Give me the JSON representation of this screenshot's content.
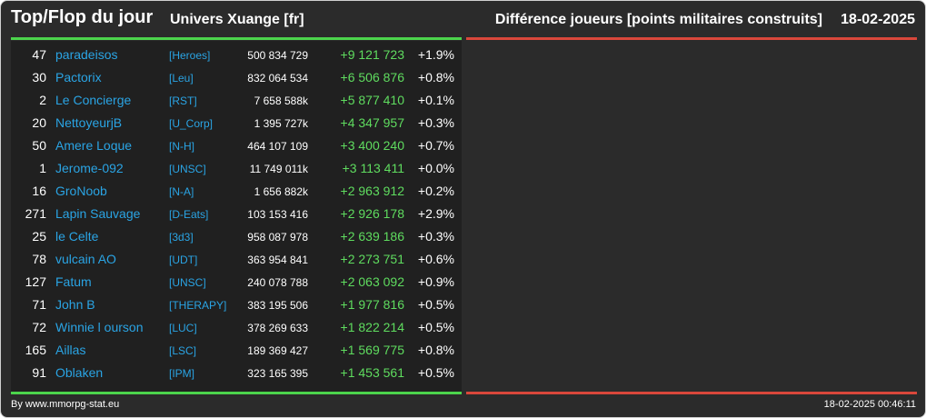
{
  "header": {
    "title": "Top/Flop du jour",
    "univers": "Univers Xuange [fr]",
    "metric": "Différence joueurs [points militaires construits]",
    "date": "18-02-2025"
  },
  "colors": {
    "background": "#2b2b2b",
    "panel": "#202020",
    "name_link": "#2aa4e4",
    "positive": "#5fdc5f",
    "top_bar": "#4cd44c",
    "flop_bar": "#d9473b"
  },
  "top_players": [
    {
      "rank": "47",
      "name": "paradeisos",
      "alliance": "[Heroes]",
      "points": "500 834 729",
      "diff": "+9 121 723",
      "pct": "+1.9%"
    },
    {
      "rank": "30",
      "name": "Pactorix",
      "alliance": "[Leu]",
      "points": "832 064 534",
      "diff": "+6 506 876",
      "pct": "+0.8%"
    },
    {
      "rank": "2",
      "name": "Le Concierge",
      "alliance": "[RST]",
      "points": "7 658 588k",
      "diff": "+5 877 410",
      "pct": "+0.1%"
    },
    {
      "rank": "20",
      "name": "NettoyeurjB",
      "alliance": "[U_Corp]",
      "points": "1 395 727k",
      "diff": "+4 347 957",
      "pct": "+0.3%"
    },
    {
      "rank": "50",
      "name": "Amere Loque",
      "alliance": "[N-H]",
      "points": "464 107 109",
      "diff": "+3 400 240",
      "pct": "+0.7%"
    },
    {
      "rank": "1",
      "name": "Jerome-092",
      "alliance": "[UNSC]",
      "points": "11 749 011k",
      "diff": "+3 113 411",
      "pct": "+0.0%"
    },
    {
      "rank": "16",
      "name": "GroNoob",
      "alliance": "[N-A]",
      "points": "1 656 882k",
      "diff": "+2 963 912",
      "pct": "+0.2%"
    },
    {
      "rank": "271",
      "name": "Lapin Sauvage",
      "alliance": "[D-Eats]",
      "points": "103 153 416",
      "diff": "+2 926 178",
      "pct": "+2.9%"
    },
    {
      "rank": "25",
      "name": "le Celte",
      "alliance": "[3d3]",
      "points": "958 087 978",
      "diff": "+2 639 186",
      "pct": "+0.3%"
    },
    {
      "rank": "78",
      "name": "vulcain AO",
      "alliance": "[UDT]",
      "points": "363 954 841",
      "diff": "+2 273 751",
      "pct": "+0.6%"
    },
    {
      "rank": "127",
      "name": "Fatum",
      "alliance": "[UNSC]",
      "points": "240 078 788",
      "diff": "+2 063 092",
      "pct": "+0.9%"
    },
    {
      "rank": "71",
      "name": "John B",
      "alliance": "[THERAPY]",
      "points": "383 195 506",
      "diff": "+1 977 816",
      "pct": "+0.5%"
    },
    {
      "rank": "72",
      "name": "Winnie l ourson",
      "alliance": "[LUC]",
      "points": "378 269 633",
      "diff": "+1 822 214",
      "pct": "+0.5%"
    },
    {
      "rank": "165",
      "name": "Aillas",
      "alliance": "[LSC]",
      "points": "189 369 427",
      "diff": "+1 569 775",
      "pct": "+0.8%"
    },
    {
      "rank": "91",
      "name": "Oblaken",
      "alliance": "[IPM]",
      "points": "323 165 395",
      "diff": "+1 453 561",
      "pct": "+0.5%"
    }
  ],
  "footer": {
    "credit": "By www.mmorpg-stat.eu",
    "timestamp": "18-02-2025 00:46:11"
  }
}
